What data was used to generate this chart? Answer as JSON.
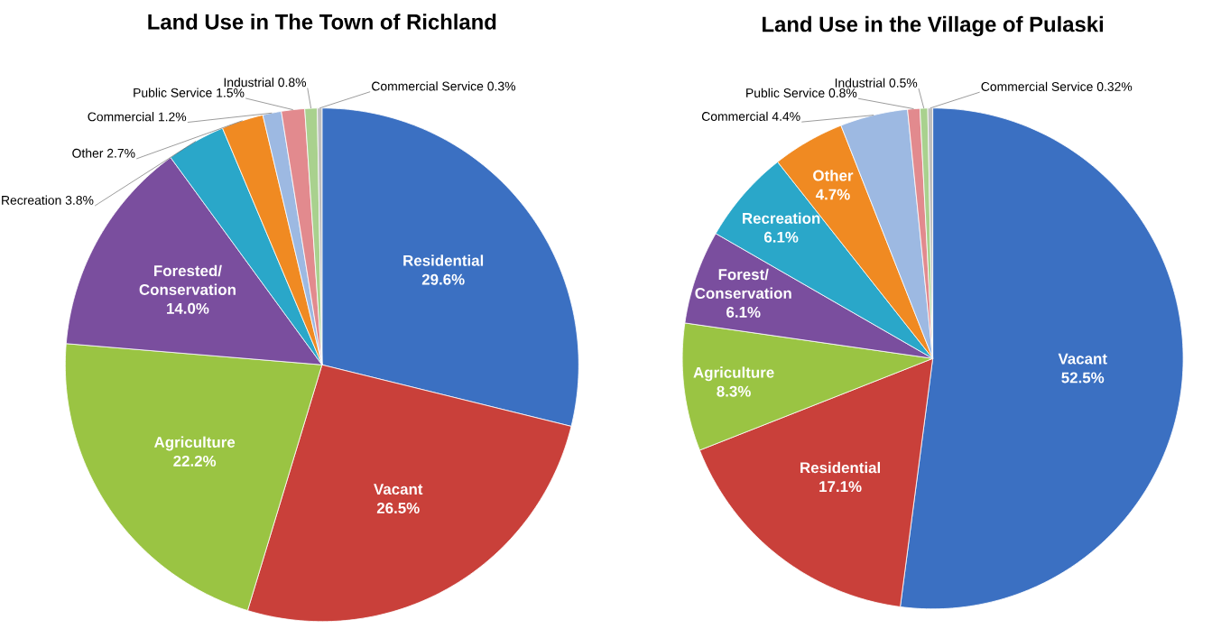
{
  "chart_data": [
    {
      "type": "pie",
      "title": "Land Use in The Town of Richland",
      "categories": [
        "Residential",
        "Vacant",
        "Agriculture",
        "Forested/ Conservation",
        "Recreation",
        "Other",
        "Commercial",
        "Public Service",
        "Industrial",
        "Commercial Service"
      ],
      "values": [
        29.6,
        26.5,
        22.2,
        14.0,
        3.8,
        2.7,
        1.2,
        1.5,
        0.8,
        0.3
      ],
      "value_labels": [
        "29.6%",
        "26.5%",
        "22.2%",
        "14.0%",
        "3.8%",
        "2.7%",
        "1.2%",
        "1.5%",
        "0.8%",
        "0.3%"
      ],
      "colors": [
        "#3b70c2",
        "#c9403a",
        "#9ac443",
        "#7a4e9e",
        "#2aa7c9",
        "#f08a22",
        "#9db9e2",
        "#e28a8e",
        "#a9d18e",
        "#bfbfbf"
      ]
    },
    {
      "type": "pie",
      "title": "Land Use in the Village of Pulaski",
      "categories": [
        "Vacant",
        "Residential",
        "Agriculture",
        "Forest/ Conservation",
        "Recreation",
        "Other",
        "Commercial",
        "Public Service",
        "Industrial",
        "Commercial Service"
      ],
      "values": [
        52.5,
        17.1,
        8.3,
        6.1,
        6.1,
        4.7,
        4.4,
        0.8,
        0.5,
        0.32
      ],
      "value_labels": [
        "52.5%",
        "17.1%",
        "8.3%",
        "6.1%",
        "6.1%",
        "4.7%",
        "4.4%",
        "0.8%",
        "0.5%",
        "0.32%"
      ],
      "colors": [
        "#3b70c2",
        "#c9403a",
        "#9ac443",
        "#7a4e9e",
        "#2aa7c9",
        "#f08a22",
        "#9db9e2",
        "#e28a8e",
        "#a9d18e",
        "#bfbfbf"
      ]
    }
  ]
}
